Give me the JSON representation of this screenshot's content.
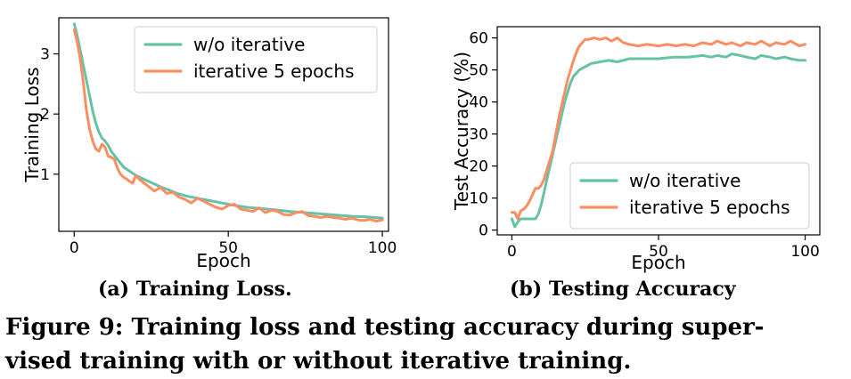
{
  "colors": {
    "wo_iterative": "#66c2a5",
    "iterative": "#fc8d62"
  },
  "chart_data": [
    {
      "type": "line",
      "subcaption": "(a) Training Loss.",
      "title": "",
      "xlabel": "Epoch",
      "ylabel": "Training Loss",
      "xlim": [
        -5,
        102
      ],
      "ylim": [
        0.05,
        3.6
      ],
      "xticks": [
        0,
        50,
        100
      ],
      "yticks": [
        1,
        2,
        3
      ],
      "grid": false,
      "legend_position": "top-right",
      "series": [
        {
          "name": "w/o iterative",
          "color": "#66c2a5",
          "x": [
            0,
            1,
            2,
            3,
            4,
            5,
            6,
            7,
            8,
            9,
            10,
            11,
            12,
            14,
            16,
            18,
            20,
            22,
            25,
            28,
            31,
            34,
            37,
            40,
            44,
            48,
            52,
            56,
            60,
            65,
            70,
            75,
            80,
            85,
            90,
            95,
            100
          ],
          "y": [
            3.5,
            3.3,
            3.05,
            2.8,
            2.55,
            2.3,
            2.05,
            1.85,
            1.7,
            1.6,
            1.55,
            1.48,
            1.38,
            1.25,
            1.12,
            1.05,
            0.98,
            0.93,
            0.86,
            0.79,
            0.73,
            0.67,
            0.63,
            0.6,
            0.56,
            0.52,
            0.48,
            0.45,
            0.43,
            0.41,
            0.38,
            0.36,
            0.34,
            0.32,
            0.3,
            0.29,
            0.27
          ]
        },
        {
          "name": "iterative 5 epochs",
          "color": "#fc8d62",
          "x": [
            0,
            1,
            2,
            3,
            4,
            5,
            6,
            7,
            8,
            9,
            10,
            11,
            12,
            13,
            14,
            15,
            16,
            17,
            18,
            19,
            20,
            21,
            22,
            24,
            26,
            28,
            30,
            32,
            34,
            36,
            38,
            40,
            42,
            44,
            46,
            48,
            50,
            52,
            54,
            56,
            58,
            60,
            62,
            64,
            66,
            68,
            70,
            72,
            74,
            76,
            78,
            80,
            82,
            84,
            86,
            88,
            90,
            92,
            94,
            96,
            98,
            100
          ],
          "y": [
            3.4,
            3.2,
            2.9,
            2.5,
            2.05,
            1.75,
            1.55,
            1.42,
            1.38,
            1.5,
            1.45,
            1.3,
            1.28,
            1.25,
            1.1,
            1.0,
            0.95,
            0.92,
            0.88,
            0.85,
            0.98,
            0.92,
            0.88,
            0.8,
            0.72,
            0.78,
            0.68,
            0.7,
            0.62,
            0.58,
            0.52,
            0.6,
            0.55,
            0.5,
            0.45,
            0.42,
            0.48,
            0.5,
            0.42,
            0.4,
            0.38,
            0.44,
            0.36,
            0.4,
            0.38,
            0.33,
            0.32,
            0.36,
            0.38,
            0.31,
            0.3,
            0.28,
            0.3,
            0.28,
            0.27,
            0.25,
            0.27,
            0.24,
            0.23,
            0.25,
            0.22,
            0.24
          ]
        }
      ]
    },
    {
      "type": "line",
      "subcaption": "(b) Testing Accuracy",
      "title": "",
      "xlabel": "Epoch",
      "ylabel": "Test Accuracy (%)",
      "xlim": [
        -5,
        105
      ],
      "ylim": [
        -1.5,
        63.5
      ],
      "xticks": [
        0,
        50,
        100
      ],
      "yticks": [
        0,
        10,
        20,
        30,
        40,
        50,
        60
      ],
      "grid": false,
      "legend_position": "lower-right",
      "series": [
        {
          "name": "w/o iterative",
          "color": "#66c2a5",
          "x": [
            0,
            1,
            2,
            3,
            4,
            5,
            6,
            7,
            8,
            9,
            10,
            11,
            12,
            13,
            14,
            15,
            16,
            17,
            18,
            19,
            20,
            21,
            22,
            23,
            24,
            25,
            27,
            30,
            33,
            36,
            40,
            45,
            50,
            55,
            60,
            65,
            68,
            70,
            73,
            75,
            78,
            80,
            83,
            85,
            88,
            90,
            93,
            95,
            98,
            100
          ],
          "y": [
            3.5,
            1.0,
            2.5,
            3.5,
            3.5,
            3.5,
            3.5,
            3.5,
            3.5,
            5.0,
            8.0,
            12.0,
            16.0,
            20.0,
            24.0,
            28.0,
            32.0,
            36.0,
            40.0,
            43.0,
            46.0,
            48.0,
            49.0,
            50.0,
            50.5,
            51.0,
            52.0,
            52.5,
            53.0,
            52.5,
            53.5,
            53.5,
            53.5,
            54.0,
            54.0,
            54.5,
            54.0,
            54.5,
            54.0,
            55.0,
            54.5,
            54.0,
            53.5,
            54.5,
            54.0,
            53.5,
            54.0,
            53.5,
            53.0,
            53.0
          ]
        },
        {
          "name": "iterative 5 epochs",
          "color": "#fc8d62",
          "x": [
            0,
            1,
            2,
            3,
            4,
            5,
            6,
            7,
            8,
            9,
            10,
            11,
            12,
            13,
            14,
            15,
            16,
            17,
            18,
            19,
            20,
            21,
            22,
            23,
            24,
            25,
            26,
            28,
            30,
            32,
            34,
            36,
            38,
            40,
            43,
            46,
            50,
            53,
            56,
            59,
            62,
            65,
            68,
            70,
            73,
            75,
            78,
            80,
            83,
            85,
            88,
            90,
            93,
            95,
            98,
            100
          ],
          "y": [
            5.5,
            5.5,
            3.5,
            6.0,
            6.5,
            7.5,
            9.0,
            11.0,
            13.0,
            13.0,
            14.0,
            16.0,
            19.0,
            22.0,
            25.0,
            30.0,
            35.0,
            39.0,
            43.0,
            47.0,
            50.0,
            53.0,
            55.5,
            57.5,
            58.5,
            59.5,
            59.5,
            60.0,
            59.5,
            60.0,
            59.0,
            60.0,
            58.5,
            58.0,
            57.5,
            58.0,
            57.5,
            58.0,
            57.5,
            58.0,
            57.5,
            58.5,
            58.0,
            59.0,
            58.0,
            58.5,
            57.5,
            58.5,
            58.0,
            59.0,
            57.5,
            58.5,
            58.0,
            59.0,
            57.5,
            58.0
          ]
        }
      ]
    }
  ],
  "caption": {
    "line1": "Figure 9: Training loss and testing accuracy during super-",
    "line2": "vised training with or without iterative training."
  }
}
